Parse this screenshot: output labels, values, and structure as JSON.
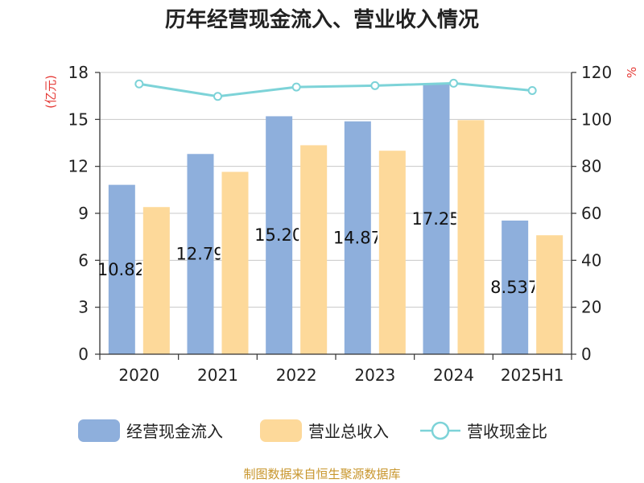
{
  "chart_data": {
    "type": "bar",
    "title": "历年经营现金流入、营业收入情况",
    "categories": [
      "2020",
      "2021",
      "2022",
      "2023",
      "2024",
      "2025H1"
    ],
    "series": [
      {
        "name": "经营现金流入",
        "axis": "left",
        "color": "#8eafdc",
        "values": [
          10.82,
          12.792,
          15.201,
          14.877,
          17.259,
          8.537
        ]
      },
      {
        "name": "营业总收入",
        "axis": "left",
        "color": "#fdd99a",
        "values": [
          9.4,
          11.65,
          13.35,
          13.0,
          14.95,
          7.6
        ]
      },
      {
        "name": "营收现金比",
        "type": "line",
        "axis": "right",
        "color": "#7dd3d8",
        "values": [
          115.1,
          109.8,
          113.8,
          114.4,
          115.4,
          112.3
        ]
      }
    ],
    "data_labels": [
      "10.82",
      "12.792",
      "15.201",
      "14.877",
      "17.259",
      "8.537"
    ],
    "y_left": {
      "unit": "(亿元)",
      "ticks": [
        "0",
        "3",
        "6",
        "9",
        "12",
        "15",
        "18"
      ],
      "ylim": [
        0,
        18
      ]
    },
    "y_right": {
      "unit": "%",
      "ticks": [
        "0",
        "20",
        "40",
        "60",
        "80",
        "100",
        "120"
      ],
      "ylim": [
        0,
        120
      ]
    },
    "grid": true,
    "legend_position": "bottom",
    "unit_color": "#e53935",
    "line_marker_fill": "#ffffff"
  },
  "source": {
    "text": "制图数据来自恒生聚源数据库",
    "color": "#c8962d"
  }
}
